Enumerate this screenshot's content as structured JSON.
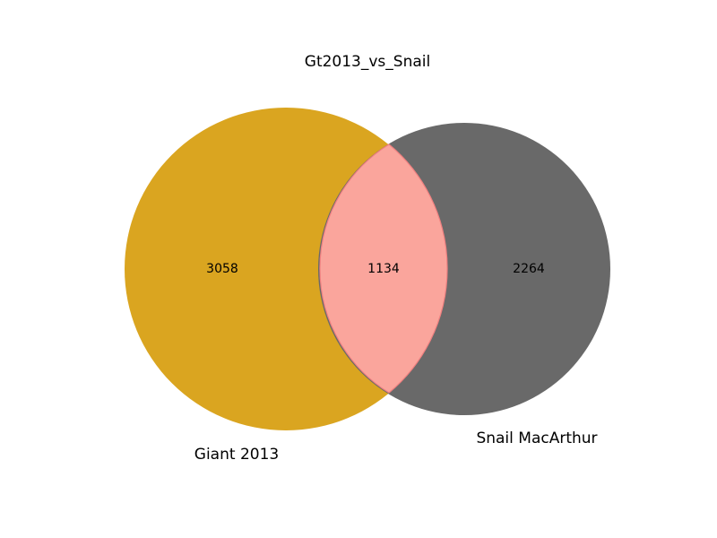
{
  "title": "Gt2013_vs_Snail",
  "sets": {
    "left": {
      "label": "Giant 2013",
      "only_count": "3058",
      "color": "#DAA520"
    },
    "right": {
      "label": "Snail MacArthur",
      "only_count": "2264",
      "color": "#696969"
    }
  },
  "intersection": {
    "count": "1134",
    "color": "#FAA59C",
    "edge_color": "#F08080"
  }
}
